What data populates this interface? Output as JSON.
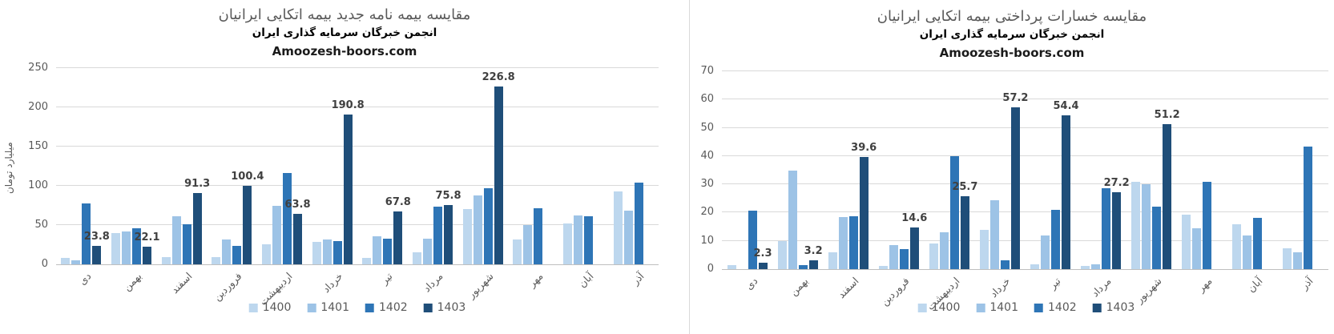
{
  "page": {
    "background": "#ffffff",
    "divider_color": "#d9d9d9"
  },
  "chart_data": [
    {
      "id": "new-policies-chart",
      "type": "bar",
      "title": "مقایسه بیمه نامه جدید بیمه اتکایی ایرانیان",
      "subtitle": "انجمن خبرگان سرمایه گذاری ایران",
      "watermark": "Amoozesh-boors.com",
      "xlabel": "",
      "ylabel": "میلیارد تومان",
      "ylim": [
        0,
        250
      ],
      "ytick_step": 50,
      "grid": true,
      "legend_position": "bottom",
      "categories": [
        "دی",
        "بهمن",
        "اسفند",
        "فروردین",
        "اردیبهشت",
        "خرداد",
        "تیر",
        "مرداد",
        "شهریور",
        "مهر",
        "آبان",
        "آذر"
      ],
      "series": [
        {
          "name": "1400",
          "color": "#BDD7EE",
          "values": [
            8,
            40,
            9.5,
            9.5,
            26,
            29,
            8,
            15.5,
            70,
            32,
            52,
            93
          ]
        },
        {
          "name": "1401",
          "color": "#9DC3E6",
          "values": [
            5,
            42,
            61,
            32,
            74,
            32,
            36,
            33,
            88,
            50,
            62,
            68
          ]
        },
        {
          "name": "1402",
          "color": "#2E75B6",
          "values": [
            78,
            46,
            51,
            23,
            116,
            30,
            33,
            73,
            97,
            71,
            61,
            104
          ]
        },
        {
          "name": "1403",
          "color": "#1F4E79",
          "values": [
            23.8,
            22.1,
            91.3,
            100.4,
            63.8,
            190.8,
            67.8,
            75.8,
            226.8,
            null,
            null,
            null
          ],
          "data_labels": [
            "23.8",
            "22.1",
            "91.3",
            "100.4",
            "63.8",
            "190.8",
            "67.8",
            "75.8",
            "226.8",
            null,
            null,
            null
          ]
        }
      ]
    },
    {
      "id": "paid-losses-chart",
      "type": "bar",
      "title": "مقایسه خسارات پرداختی بیمه اتکایی ایرانیان",
      "subtitle": "انجمن خبرگان سرمایه گذاری ایران",
      "watermark": "Amoozesh-boors.com",
      "xlabel": "",
      "ylabel": "",
      "ylim": [
        0,
        70
      ],
      "ytick_step": 10,
      "grid": true,
      "legend_position": "bottom",
      "categories": [
        "دی",
        "بهمن",
        "اسفند",
        "فروردین",
        "اردیبهشت",
        "خرداد",
        "تیر",
        "مرداد",
        "شهریور",
        "مهر",
        "آبان",
        "آذر"
      ],
      "series": [
        {
          "name": "1400",
          "color": "#BDD7EE",
          "values": [
            1.5,
            10,
            6,
            1,
            9,
            14,
            1.8,
            1,
            31,
            19.3,
            16,
            7.5
          ]
        },
        {
          "name": "1401",
          "color": "#9DC3E6",
          "values": [
            0,
            35,
            18.5,
            8.5,
            13,
            24.5,
            12,
            1.7,
            30,
            14.5,
            12,
            6
          ]
        },
        {
          "name": "1402",
          "color": "#2E75B6",
          "values": [
            20.8,
            1.5,
            18.7,
            7,
            40,
            3,
            21,
            28.5,
            22,
            31,
            18,
            43.5
          ]
        },
        {
          "name": "1403",
          "color": "#1F4E79",
          "values": [
            2.3,
            3.2,
            39.6,
            14.6,
            25.7,
            57.2,
            54.4,
            27.2,
            51.2,
            null,
            null,
            null
          ],
          "data_labels": [
            "2.3",
            "3.2",
            "39.6",
            "14.6",
            "25.7",
            "57.2",
            "54.4",
            "27.2",
            "51.2",
            null,
            null,
            null
          ]
        }
      ]
    }
  ]
}
